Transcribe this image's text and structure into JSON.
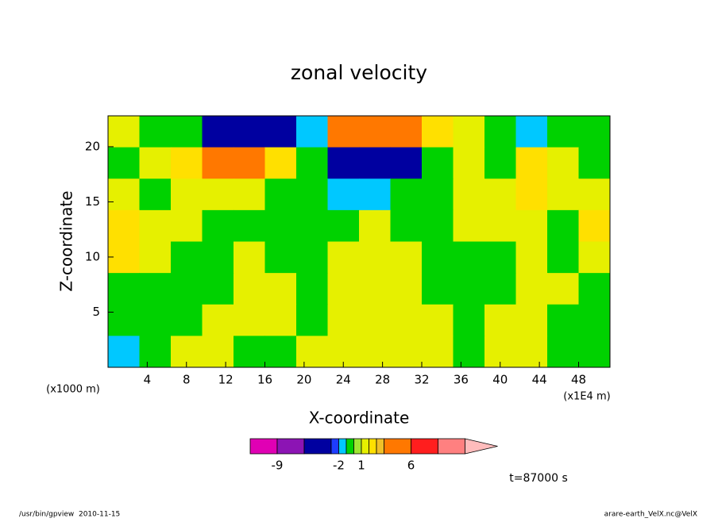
{
  "chart_data": {
    "type": "contour",
    "title": "zonal velocity",
    "xlabel": "X-coordinate",
    "ylabel": "Z-coordinate",
    "x_unit": "(x1E4 m)",
    "y_unit": "(x1000 m)",
    "annotation": "t=87000 s",
    "footer_left": "/usr/bin/gpview  2010-11-15",
    "footer_right": "arare-earth_VelX.nc@VelX",
    "xlim": [
      0,
      51.2
    ],
    "ylim": [
      0,
      22.8
    ],
    "xticks": [
      4,
      8,
      12,
      16,
      20,
      24,
      28,
      32,
      36,
      40,
      44,
      48
    ],
    "yticks": [
      5,
      10,
      15,
      20
    ],
    "x": [
      1.6,
      4.8,
      8,
      11.2,
      14.4,
      17.6,
      20.8,
      24,
      27.2,
      30.4,
      33.6,
      36.8,
      40,
      43.2,
      46.4,
      49.6
    ],
    "y": [
      21.375,
      18.525,
      15.675,
      12.825,
      9.975,
      7.125,
      4.275,
      1.425
    ],
    "values": [
      [
        1.5,
        -0.5,
        -0.5,
        -5,
        -5,
        -5,
        -1.5,
        5,
        5,
        5,
        2.5,
        1.5,
        -0.5,
        -1.5,
        -0.5,
        -0.5
      ],
      [
        -0.5,
        1.5,
        2.5,
        5,
        5,
        2.5,
        -0.5,
        -5,
        -5,
        -3.5,
        -0.5,
        1.5,
        -0.5,
        2.5,
        1.5,
        -0.5
      ],
      [
        1.5,
        -0.5,
        1.5,
        1.5,
        1.5,
        -0.5,
        -0.5,
        -1.5,
        -1.5,
        -0.5,
        -0.5,
        1.5,
        1.5,
        2.5,
        1.5,
        1.5
      ],
      [
        2.5,
        1.5,
        1.5,
        -0.5,
        -0.5,
        -0.5,
        -0.5,
        -0.5,
        1.5,
        -0.5,
        -0.5,
        1.5,
        1.5,
        1.5,
        -0.5,
        2.5
      ],
      [
        2.5,
        1.5,
        -0.5,
        -0.5,
        1.5,
        -0.5,
        -0.5,
        1.5,
        1.5,
        1.5,
        -0.5,
        -0.5,
        -0.5,
        1.5,
        -0.5,
        1.5
      ],
      [
        -0.5,
        -0.5,
        -0.5,
        -0.5,
        1.5,
        1.5,
        -0.5,
        1.5,
        1.5,
        1.5,
        -0.5,
        -0.5,
        -0.5,
        1.5,
        1.5,
        -0.5
      ],
      [
        -0.5,
        -0.5,
        -0.5,
        1.5,
        1.5,
        1.5,
        -0.5,
        1.5,
        1.5,
        1.5,
        1.5,
        -0.5,
        1.5,
        1.5,
        -0.5,
        -0.5
      ],
      [
        -1.5,
        -0.5,
        1.5,
        1.5,
        -0.5,
        -0.5,
        1.5,
        1.5,
        1.5,
        1.5,
        1.5,
        -0.5,
        1.5,
        1.5,
        -0.5,
        -0.5
      ]
    ],
    "levels": [
      -12,
      -9,
      -6,
      -3,
      -2,
      -1,
      0,
      1,
      2,
      3,
      4,
      6,
      9,
      12
    ],
    "colors": [
      "#e000b4",
      "#8c14b4",
      "#0000a0",
      "#1e3cff",
      "#00c8ff",
      "#00d200",
      "#a0e632",
      "#e6f000",
      "#ffe000",
      "#f0c028",
      "#ff7800",
      "#ff1e1e",
      "#ff8080",
      "#ffbcbc"
    ],
    "colorbar_labels": [
      -9,
      -2,
      1,
      6
    ]
  }
}
